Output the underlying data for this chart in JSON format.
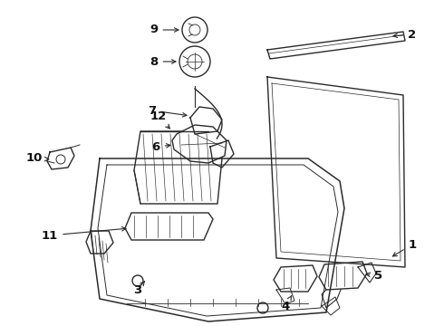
{
  "bg_color": "#ffffff",
  "line_color": "#2a2a2a",
  "lw": 1.0,
  "figsize": [
    4.9,
    3.6
  ],
  "dpi": 100,
  "label_fontsize": 9.5
}
